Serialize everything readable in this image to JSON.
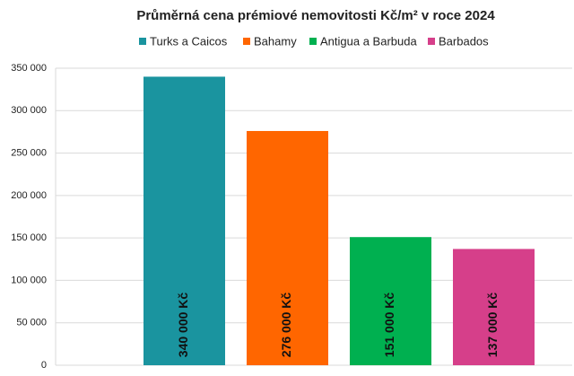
{
  "chart_data": {
    "type": "bar",
    "title": "Průměrná cena prémiové nemovitosti Kč/m² v roce 2024",
    "categories": [
      null
    ],
    "series": [
      {
        "name": "Turks a Caicos",
        "color": "#1a949f",
        "values": [
          340000
        ],
        "value_labels": [
          "340 000 Kč"
        ]
      },
      {
        "name": "Bahamy",
        "color": "#ff6600",
        "values": [
          276000
        ],
        "value_labels": [
          "276 000 Kč"
        ]
      },
      {
        "name": "Antigua a Barbuda",
        "color": "#00b050",
        "values": [
          151000
        ],
        "value_labels": [
          "151 000 Kč"
        ]
      },
      {
        "name": "Barbados",
        "color": "#d63f8a",
        "values": [
          137000
        ],
        "value_labels": [
          "137 000 Kč"
        ]
      }
    ],
    "ylim": [
      0,
      350000
    ],
    "yticks": [
      {
        "value": 0,
        "label": "0"
      },
      {
        "value": 50000,
        "label": "50 000"
      },
      {
        "value": 100000,
        "label": "100 000"
      },
      {
        "value": 150000,
        "label": "150 000"
      },
      {
        "value": 200000,
        "label": "200 000"
      },
      {
        "value": 250000,
        "label": "250 000"
      },
      {
        "value": 300000,
        "label": "300 000"
      },
      {
        "value": 350000,
        "label": "350 000"
      }
    ],
    "grid": true
  }
}
